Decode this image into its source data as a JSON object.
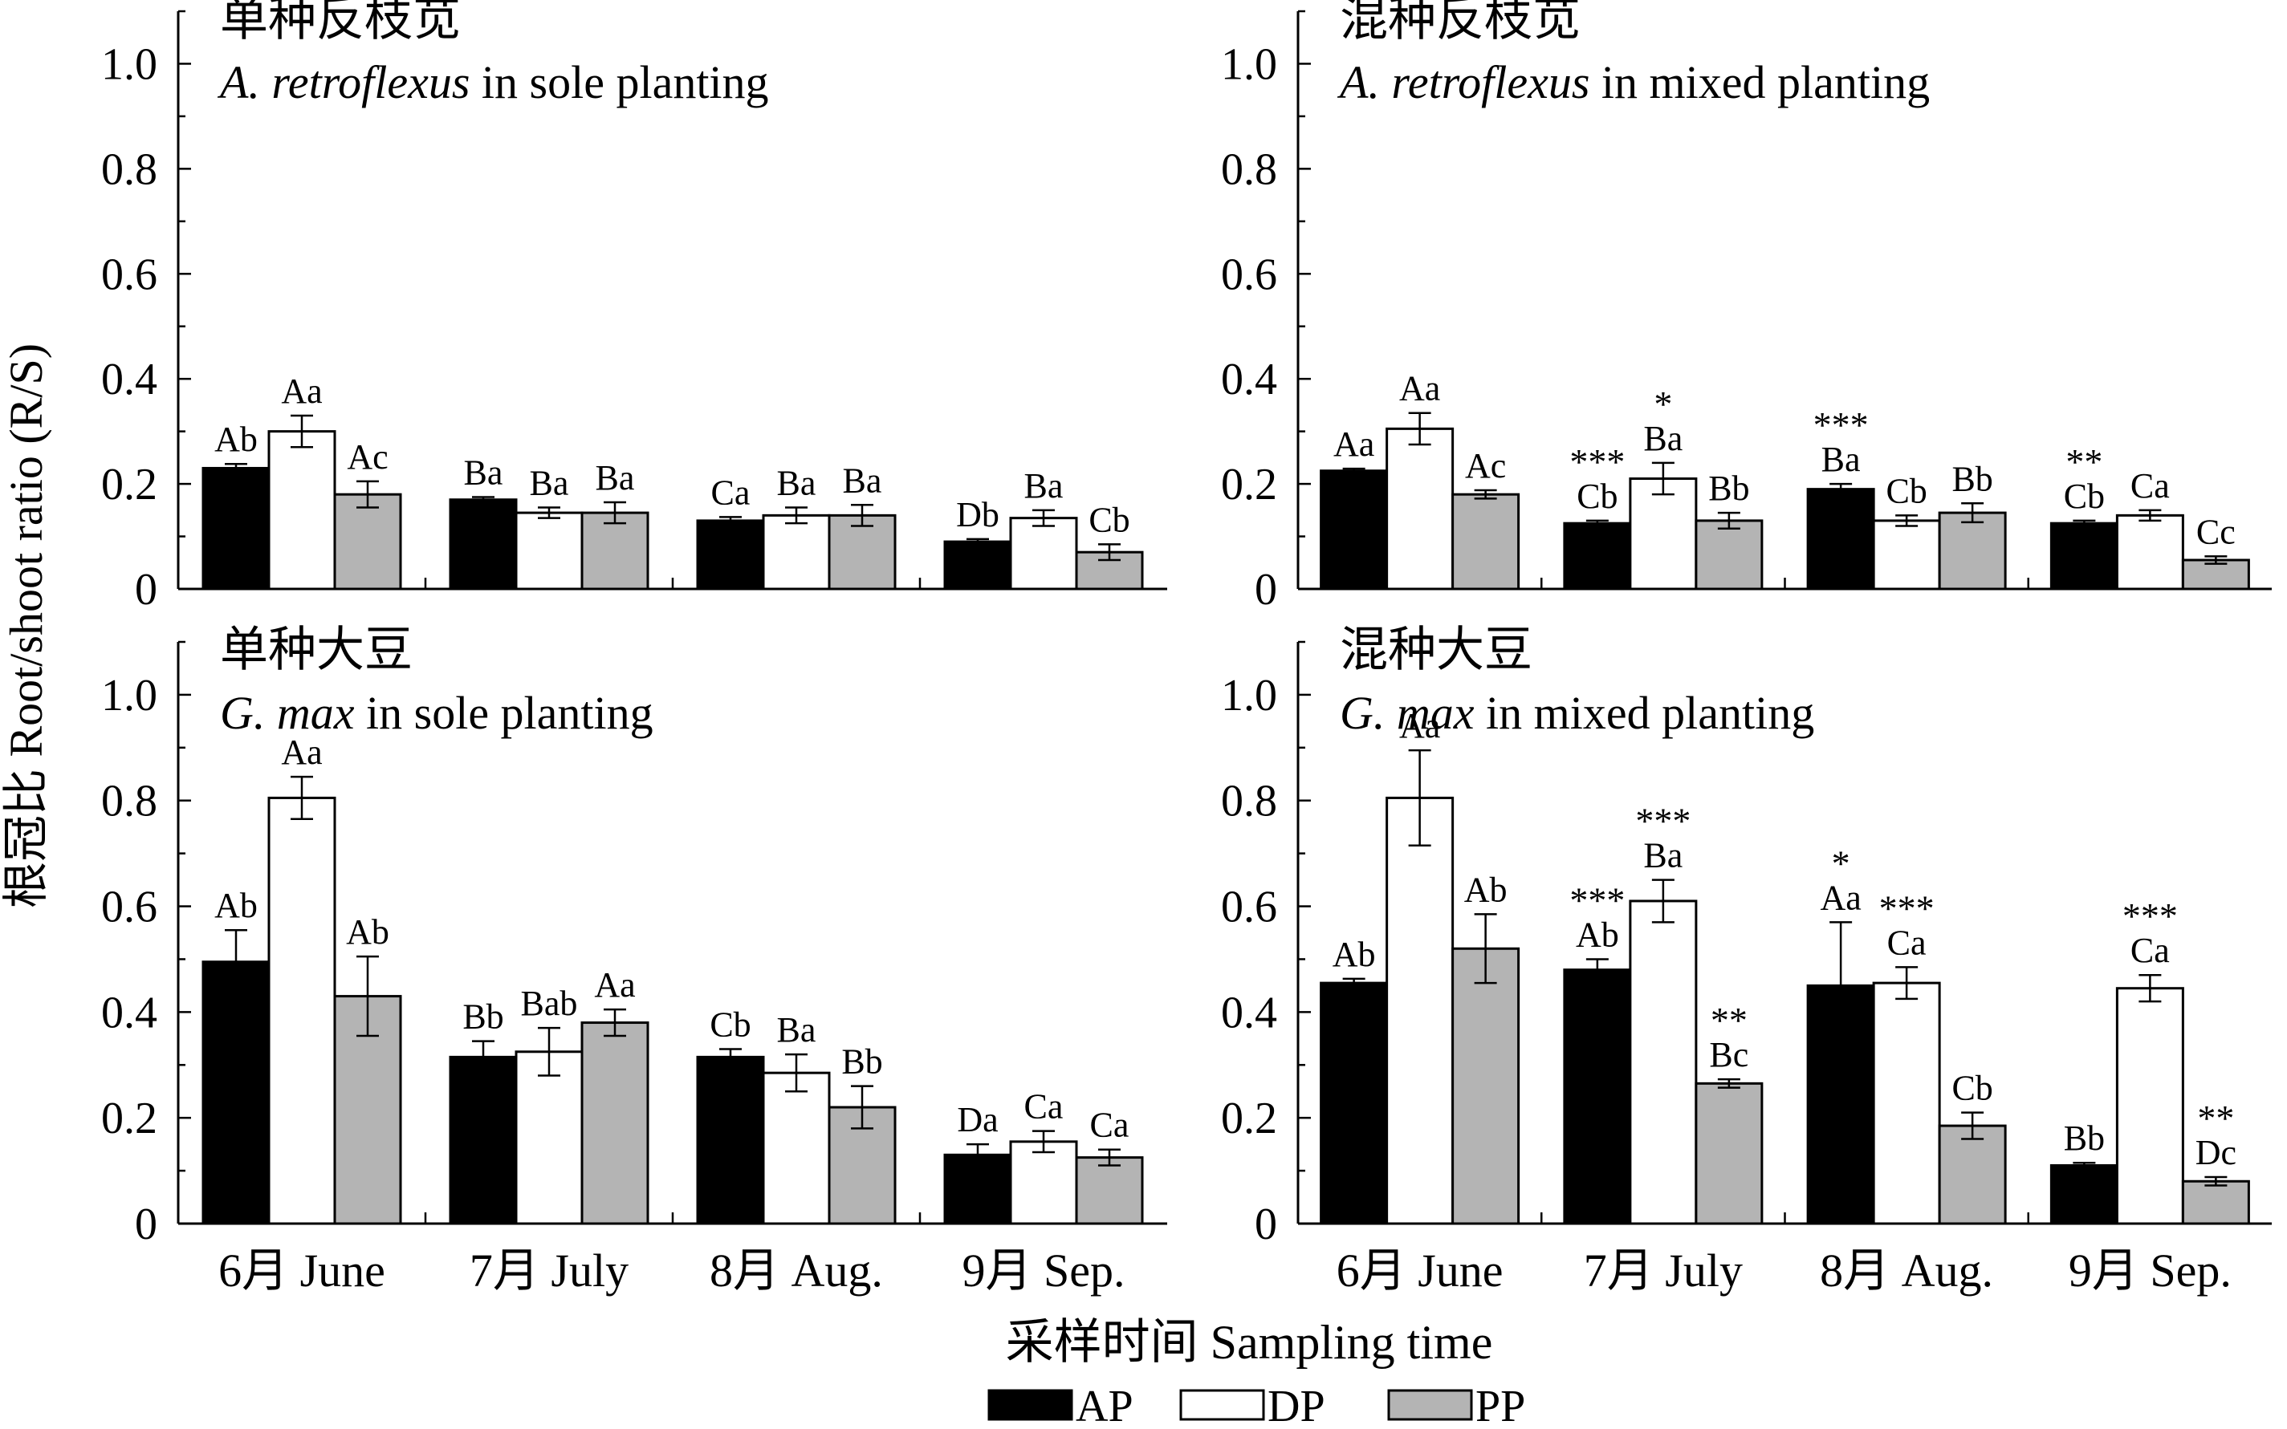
{
  "ylabel": "根冠比 Root/shoot ratio (R/S)",
  "xlabel": "采样时间 Sampling time",
  "legend": {
    "placement": "bottom-center",
    "items": [
      {
        "name": "AP",
        "color": "#000000"
      },
      {
        "name": "DP",
        "color": "#ffffff"
      },
      {
        "name": "PP",
        "color": "#b4b4b4"
      }
    ]
  },
  "chart_data": [
    {
      "type": "bar",
      "title_cn": "单种反枝苋",
      "title_italic": "A. retroflexus",
      "title_rest": " in sole planting",
      "categories": [
        "6月 June",
        "7月 July",
        "8月 Aug.",
        "9月 Sep."
      ],
      "ylim": [
        0,
        1.1
      ],
      "yticks": [
        "0",
        "0.2",
        "0.4",
        "0.6",
        "0.8",
        "1.0"
      ],
      "show_xticklabels": false,
      "series": [
        {
          "name": "AP",
          "values": [
            0.23,
            0.17,
            0.13,
            0.09
          ],
          "err": [
            0.008,
            0.005,
            0.007,
            0.005
          ],
          "labels": [
            "Ab",
            "Ba",
            "Ca",
            "Db"
          ],
          "stars": [
            "",
            "",
            "",
            ""
          ]
        },
        {
          "name": "DP",
          "values": [
            0.3,
            0.145,
            0.14,
            0.135
          ],
          "err": [
            0.03,
            0.01,
            0.015,
            0.015
          ],
          "labels": [
            "Aa",
            "Ba",
            "Ba",
            "Ba"
          ],
          "stars": [
            "",
            "",
            "",
            ""
          ]
        },
        {
          "name": "PP",
          "values": [
            0.18,
            0.145,
            0.14,
            0.07
          ],
          "err": [
            0.025,
            0.02,
            0.02,
            0.015
          ],
          "labels": [
            "Ac",
            "Ba",
            "Ba",
            "Cb"
          ],
          "stars": [
            "",
            "",
            "",
            ""
          ]
        }
      ]
    },
    {
      "type": "bar",
      "title_cn": "混种反枝苋",
      "title_italic": "A. retroflexus",
      "title_rest": " in mixed planting",
      "categories": [
        "6月 June",
        "7月 July",
        "8月 Aug.",
        "9月 Sep."
      ],
      "ylim": [
        0,
        1.1
      ],
      "yticks": [
        "0",
        "0.2",
        "0.4",
        "0.6",
        "0.8",
        "1.0"
      ],
      "show_xticklabels": false,
      "series": [
        {
          "name": "AP",
          "values": [
            0.225,
            0.125,
            0.19,
            0.125
          ],
          "err": [
            0.004,
            0.005,
            0.01,
            0.005
          ],
          "labels": [
            "Aa",
            "Cb",
            "Ba",
            "Cb"
          ],
          "stars": [
            "",
            "***",
            "***",
            "**"
          ]
        },
        {
          "name": "DP",
          "values": [
            0.305,
            0.21,
            0.13,
            0.14
          ],
          "err": [
            0.03,
            0.03,
            0.01,
            0.01
          ],
          "labels": [
            "Aa",
            "Ba",
            "Cb",
            "Ca"
          ],
          "stars": [
            "",
            "*",
            "",
            ""
          ]
        },
        {
          "name": "PP",
          "values": [
            0.18,
            0.13,
            0.145,
            0.055
          ],
          "err": [
            0.008,
            0.015,
            0.018,
            0.007
          ],
          "labels": [
            "Ac",
            "Bb",
            "Bb",
            "Cc"
          ],
          "stars": [
            "",
            "",
            "",
            ""
          ]
        }
      ]
    },
    {
      "type": "bar",
      "title_cn": "单种大豆",
      "title_italic": "G. max",
      "title_rest": " in sole planting",
      "categories": [
        "6月 June",
        "7月 July",
        "8月 Aug.",
        "9月 Sep."
      ],
      "ylim": [
        0,
        1.1
      ],
      "yticks": [
        "0",
        "0.2",
        "0.4",
        "0.6",
        "0.8",
        "1.0"
      ],
      "show_xticklabels": true,
      "series": [
        {
          "name": "AP",
          "values": [
            0.495,
            0.315,
            0.315,
            0.13
          ],
          "err": [
            0.06,
            0.03,
            0.015,
            0.02
          ],
          "labels": [
            "Ab",
            "Bb",
            "Cb",
            "Da"
          ],
          "stars": [
            "",
            "",
            "",
            ""
          ]
        },
        {
          "name": "DP",
          "values": [
            0.805,
            0.325,
            0.285,
            0.155
          ],
          "err": [
            0.04,
            0.045,
            0.035,
            0.02
          ],
          "labels": [
            "Aa",
            "Bab",
            "Ba",
            "Ca"
          ],
          "stars": [
            "",
            "",
            "",
            ""
          ]
        },
        {
          "name": "PP",
          "values": [
            0.43,
            0.38,
            0.22,
            0.125
          ],
          "err": [
            0.075,
            0.025,
            0.04,
            0.015
          ],
          "labels": [
            "Ab",
            "Aa",
            "Bb",
            "Ca"
          ],
          "stars": [
            "",
            "",
            "",
            ""
          ]
        }
      ]
    },
    {
      "type": "bar",
      "title_cn": "混种大豆",
      "title_italic": "G. max",
      "title_rest": " in mixed planting",
      "categories": [
        "6月 June",
        "7月 July",
        "8月 Aug.",
        "9月 Sep."
      ],
      "ylim": [
        0,
        1.1
      ],
      "yticks": [
        "0",
        "0.2",
        "0.4",
        "0.6",
        "0.8",
        "1.0"
      ],
      "show_xticklabels": true,
      "series": [
        {
          "name": "AP",
          "values": [
            0.455,
            0.48,
            0.45,
            0.11
          ],
          "err": [
            0.008,
            0.02,
            0.12,
            0.005
          ],
          "labels": [
            "Ab",
            "Ab",
            "Aa",
            "Bb"
          ],
          "stars": [
            "",
            "***",
            "*",
            ""
          ]
        },
        {
          "name": "DP",
          "values": [
            0.805,
            0.61,
            0.455,
            0.445
          ],
          "err": [
            0.09,
            0.04,
            0.03,
            0.025
          ],
          "labels": [
            "Aa",
            "Ba",
            "Ca",
            "Ca"
          ],
          "stars": [
            "",
            "***",
            "***",
            "***"
          ]
        },
        {
          "name": "PP",
          "values": [
            0.52,
            0.265,
            0.185,
            0.08
          ],
          "err": [
            0.065,
            0.008,
            0.025,
            0.008
          ],
          "labels": [
            "Ab",
            "Bc",
            "Cb",
            "Dc"
          ],
          "stars": [
            "",
            "**",
            "",
            "**"
          ]
        }
      ]
    }
  ]
}
